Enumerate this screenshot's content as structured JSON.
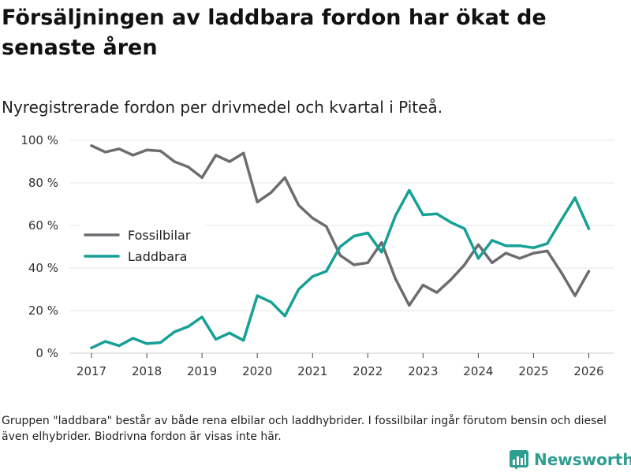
{
  "header": {
    "title": "Försäljningen av laddbara fordon har ökat de senaste åren",
    "subtitle": "Nyregistrerade fordon per drivmedel och kvartal i Piteå."
  },
  "footnote": "Gruppen \"laddbara\" består av både rena elbilar och laddhybrider. I fossilbilar ingår förutom bensin och diesel även elhybrider. Biodrivna fordon är visas inte här.",
  "brand": {
    "name": "Newsworthy"
  },
  "chart_data": {
    "type": "line",
    "title": "Försäljningen av laddbara fordon har ökat de senaste åren",
    "subtitle": "Nyregistrerade fordon per drivmedel och kvartal i Piteå.",
    "xlabel": "",
    "ylabel": "",
    "x": [
      2017,
      2017.25,
      2017.5,
      2017.75,
      2018,
      2018.25,
      2018.5,
      2018.75,
      2019,
      2019.25,
      2019.5,
      2019.75,
      2020,
      2020.25,
      2020.5,
      2020.75,
      2021,
      2021.25,
      2021.5,
      2021.75,
      2022,
      2022.25,
      2022.5,
      2022.75,
      2023,
      2023.25,
      2023.5,
      2023.75,
      2024,
      2024.25,
      2024.5,
      2024.75,
      2025,
      2025.25,
      2025.5,
      2025.75,
      2026
    ],
    "xlim": [
      2016.6,
      2026.45
    ],
    "xticks": [
      2017,
      2018,
      2019,
      2020,
      2021,
      2022,
      2023,
      2024,
      2025,
      2026
    ],
    "xtick_labels": [
      "2017",
      "2018",
      "2019",
      "2020",
      "2021",
      "2022",
      "2023",
      "2024",
      "2025",
      "2026"
    ],
    "ylim": [
      0,
      100
    ],
    "yticks": [
      0,
      20,
      40,
      60,
      80,
      100
    ],
    "ytick_labels": [
      "0 %",
      "20 %",
      "40 %",
      "60 %",
      "80 %",
      "100 %"
    ],
    "grid": true,
    "legend_position": "middle-left",
    "series": [
      {
        "name": "Fossilbilar",
        "color": "#6d6c70",
        "values": [
          97.5,
          94.5,
          96,
          93,
          95.5,
          95,
          90,
          87.5,
          82.5,
          93,
          90,
          94,
          71,
          75.5,
          82.5,
          69.5,
          63.5,
          59.5,
          46,
          41.5,
          42.5,
          52,
          35,
          22.5,
          32,
          28.5,
          34.5,
          41.5,
          51,
          42.5,
          47,
          44.5,
          47,
          48,
          38,
          27,
          38.5
        ]
      },
      {
        "name": "Laddbara",
        "color": "#16a096",
        "values": [
          2.5,
          5.5,
          3.5,
          7,
          4.5,
          5,
          10,
          12.5,
          17,
          6.5,
          9.5,
          6,
          27,
          24,
          17.5,
          30,
          36,
          38.5,
          50,
          55,
          56.5,
          47.5,
          64.5,
          76.5,
          65,
          65.5,
          61.5,
          58.5,
          44.5,
          53,
          50.5,
          50.5,
          49.5,
          51.5,
          62.5,
          73,
          58.5
        ]
      }
    ]
  }
}
